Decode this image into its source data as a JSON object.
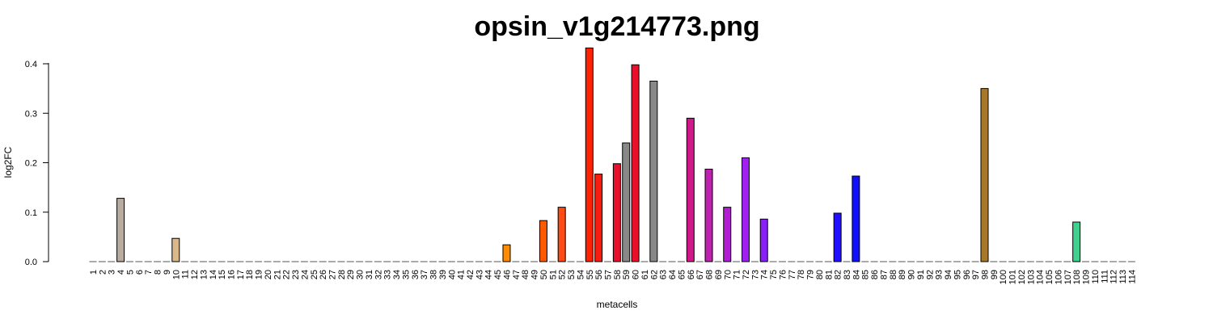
{
  "chart_data": {
    "type": "bar",
    "title": "opsin_v1g214773.png",
    "xlabel": "metacells",
    "ylabel": "log2FC",
    "ylim": [
      0,
      0.45
    ],
    "yticks": [
      0.0,
      0.1,
      0.2,
      0.3,
      0.4
    ],
    "ytick_labels": [
      "0.0",
      "0.1",
      "0.2",
      "0.3",
      "0.4"
    ],
    "categories": [
      "1",
      "2",
      "3",
      "4",
      "5",
      "6",
      "7",
      "8",
      "9",
      "10",
      "11",
      "12",
      "13",
      "14",
      "15",
      "16",
      "17",
      "18",
      "19",
      "20",
      "21",
      "22",
      "23",
      "24",
      "25",
      "26",
      "27",
      "28",
      "29",
      "30",
      "31",
      "32",
      "33",
      "34",
      "35",
      "36",
      "37",
      "38",
      "39",
      "40",
      "41",
      "42",
      "43",
      "44",
      "45",
      "46",
      "47",
      "48",
      "49",
      "50",
      "51",
      "52",
      "53",
      "54",
      "55",
      "56",
      "57",
      "58",
      "59",
      "60",
      "61",
      "62",
      "63",
      "64",
      "65",
      "66",
      "67",
      "68",
      "69",
      "70",
      "71",
      "72",
      "73",
      "74",
      "75",
      "76",
      "77",
      "78",
      "79",
      "80",
      "81",
      "82",
      "83",
      "84",
      "85",
      "86",
      "87",
      "88",
      "89",
      "90",
      "91",
      "92",
      "93",
      "94",
      "95",
      "96",
      "97",
      "98",
      "99",
      "100",
      "101",
      "102",
      "103",
      "104",
      "105",
      "106",
      "107",
      "108",
      "109",
      "110",
      "111",
      "112",
      "113",
      "114"
    ],
    "values": [
      0,
      0,
      0,
      0.128,
      0,
      0,
      0,
      0,
      0,
      0.047,
      0,
      0,
      0,
      0,
      0,
      0,
      0,
      0,
      0,
      0,
      0,
      0,
      0,
      0,
      0,
      0,
      0,
      0,
      0,
      0,
      0,
      0,
      0,
      0,
      0,
      0,
      0,
      0,
      0,
      0,
      0,
      0,
      0,
      0,
      0,
      0.034,
      0,
      0,
      0,
      0.083,
      0,
      0.11,
      0,
      0,
      0.432,
      0.177,
      0,
      0.198,
      0.24,
      0.398,
      0,
      0.365,
      0,
      0,
      0,
      0.29,
      0,
      0.187,
      0,
      0.11,
      0,
      0.21,
      0,
      0.086,
      0,
      0,
      0,
      0,
      0,
      0,
      0,
      0.098,
      0,
      0.173,
      0,
      0,
      0,
      0,
      0,
      0,
      0,
      0,
      0,
      0,
      0,
      0,
      0,
      0.35,
      0,
      0,
      0,
      0,
      0,
      0,
      0,
      0,
      0,
      0.08,
      0,
      0,
      0,
      0,
      0,
      0
    ],
    "colors": {
      "4": "#b8aca0",
      "10": "#d9b88c",
      "46": "#ff8c00",
      "50": "#ff5a00",
      "52": "#ff4a14",
      "55": "#ff2200",
      "56": "#f71d10",
      "58": "#e8102a",
      "60": "#e8102a",
      "61": "#e8103a",
      "63": "#e0104a",
      "66": "#d01888",
      "68": "#c020b0",
      "70": "#b020d0",
      "72": "#a020f0",
      "74": "#8a20f8",
      "82": "#2010ff",
      "84": "#1010ff",
      "98": "#a8782a",
      "108": "#40d090"
    },
    "default_color": "#888888",
    "grid": false
  }
}
